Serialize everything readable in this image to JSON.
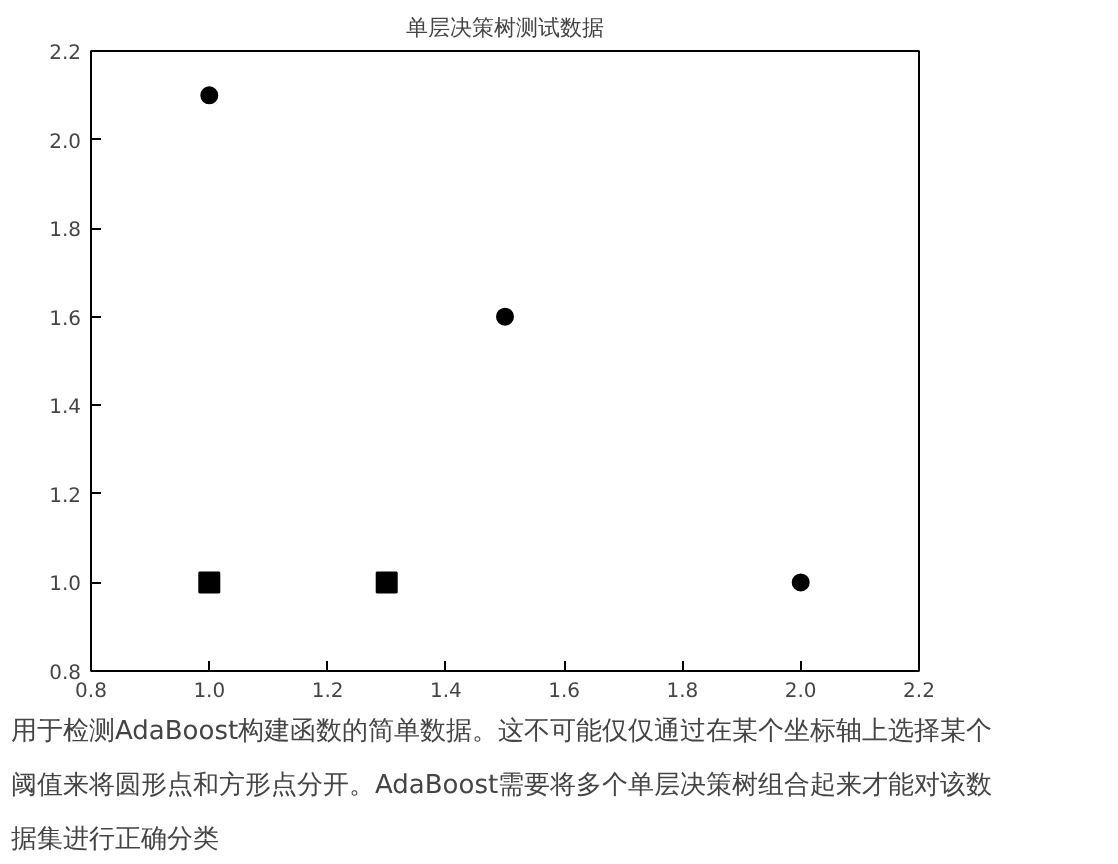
{
  "chart_data": {
    "type": "scatter",
    "title": "单层决策树测试数据",
    "series": [
      {
        "color": "#000000",
        "marker": "circle",
        "x": [
          1.0,
          1.5,
          2.0
        ],
        "values": [
          2.1,
          1.6,
          1.0
        ]
      },
      {
        "color": "#000000",
        "marker": "square",
        "x": [
          1.0,
          1.3
        ],
        "values": [
          1.0,
          1.0
        ]
      }
    ],
    "xlim": [
      0.8,
      2.2
    ],
    "ylim": [
      0.8,
      2.2
    ],
    "xticks": [
      0.8,
      {
        "value": 1,
        "label": "1.0"
      },
      1.2,
      1.4,
      1.6,
      1.8,
      {
        "value": 2,
        "label": "2.0"
      },
      2.2
    ],
    "yticks": [
      0.8,
      {
        "value": 1,
        "label": "1.0"
      },
      1.2,
      1.4,
      1.6,
      1.8,
      {
        "value": 2,
        "label": "2.0"
      },
      2.2
    ],
    "grid": false,
    "annotations": [
      "用于检测AdaBoost构建函数的简单数据。这不可能仅仅通过在某个坐标轴上选择某个阈值来将圆形点和方形点分开。AdaBoost需要将多个单层决策树组合起来才能对该数据集进行正确分类"
    ]
  }
}
